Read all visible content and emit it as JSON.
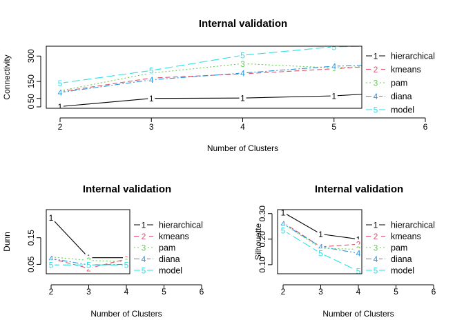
{
  "chart_data": [
    {
      "type": "line",
      "title": "Internal validation",
      "xlabel": "Number of Clusters",
      "ylabel": "Connectivity",
      "x": [
        2,
        3,
        4,
        5,
        6
      ],
      "xlim": [
        2,
        6
      ],
      "ylim": [
        0,
        350
      ],
      "yticks": [
        0,
        50,
        150,
        300
      ],
      "legend": "right",
      "series": [
        {
          "name": "hierarchical",
          "marker": "1",
          "color": "#000000",
          "dash": "",
          "values": [
            2,
            50,
            52,
            65,
            97
          ]
        },
        {
          "name": "kmeans",
          "marker": "2",
          "color": "#df536b",
          "dash": "7 4",
          "values": [
            90,
            170,
            195,
            225,
            260
          ]
        },
        {
          "name": "pam",
          "marker": "3",
          "color": "#61d04f",
          "dash": "2 3",
          "values": [
            95,
            200,
            255,
            230,
            255
          ]
        },
        {
          "name": "diana",
          "marker": "4",
          "color": "#2297e6",
          "dash": "8 3 2 3",
          "values": [
            85,
            160,
            200,
            240,
            255
          ]
        },
        {
          "name": "model",
          "marker": "5",
          "color": "#28e2e5",
          "dash": "12 5",
          "values": [
            140,
            215,
            305,
            355,
            365
          ]
        }
      ]
    },
    {
      "type": "line",
      "title": "Internal validation",
      "xlabel": "Number of Clusters",
      "ylabel": "Dunn",
      "x": [
        2,
        3,
        4
      ],
      "xlim": [
        2,
        6
      ],
      "ylim": [
        0.02,
        0.25
      ],
      "yticks": [
        0.05,
        0.15
      ],
      "legend": "right",
      "series": [
        {
          "name": "hierarchical",
          "marker": "1",
          "color": "#000000",
          "dash": "",
          "values": [
            0.225,
            0.075,
            0.075
          ]
        },
        {
          "name": "kmeans",
          "marker": "2",
          "color": "#df536b",
          "dash": "7 4",
          "values": [
            0.072,
            0.035,
            0.07
          ]
        },
        {
          "name": "pam",
          "marker": "3",
          "color": "#61d04f",
          "dash": "2 3",
          "values": [
            0.078,
            0.065,
            0.06
          ]
        },
        {
          "name": "diana",
          "marker": "4",
          "color": "#2297e6",
          "dash": "8 3 2 3",
          "values": [
            0.072,
            0.048,
            0.05
          ]
        },
        {
          "name": "model",
          "marker": "5",
          "color": "#28e2e5",
          "dash": "12 5",
          "values": [
            0.048,
            0.048,
            0.048
          ]
        }
      ]
    },
    {
      "type": "line",
      "title": "Internal validation",
      "xlabel": "Number of Clusters",
      "ylabel": "Silhouette",
      "x": [
        2,
        3,
        4
      ],
      "xlim": [
        2,
        6
      ],
      "ylim": [
        0.07,
        0.31
      ],
      "yticks": [
        0.1,
        0.2,
        0.3
      ],
      "legend": "right",
      "series": [
        {
          "name": "hierarchical",
          "marker": "1",
          "color": "#000000",
          "dash": "",
          "values": [
            0.305,
            0.22,
            0.2
          ]
        },
        {
          "name": "kmeans",
          "marker": "2",
          "color": "#df536b",
          "dash": "7 4",
          "values": [
            0.265,
            0.17,
            0.18
          ]
        },
        {
          "name": "pam",
          "marker": "3",
          "color": "#61d04f",
          "dash": "2 3",
          "values": [
            0.26,
            0.165,
            0.16
          ]
        },
        {
          "name": "diana",
          "marker": "4",
          "color": "#2297e6",
          "dash": "8 3 2 3",
          "values": [
            0.26,
            0.17,
            0.145
          ]
        },
        {
          "name": "model",
          "marker": "5",
          "color": "#28e2e5",
          "dash": "12 5",
          "values": [
            0.235,
            0.145,
            0.075
          ]
        }
      ]
    }
  ]
}
